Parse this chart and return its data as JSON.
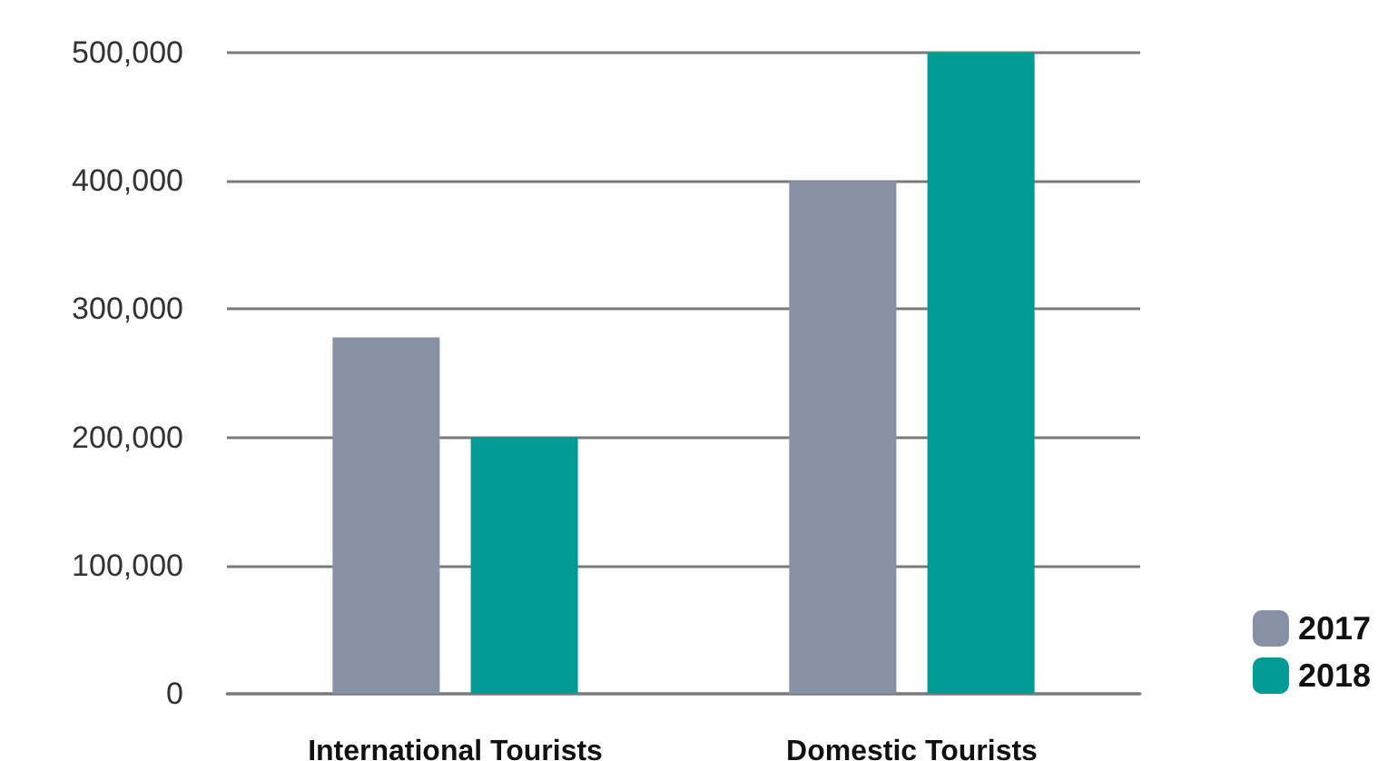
{
  "chart_data": {
    "type": "bar",
    "categories": [
      "International Tourists",
      "Domestic Tourists"
    ],
    "series": [
      {
        "name": "2017",
        "color": "#8790a4",
        "values": [
          278000,
          400000
        ]
      },
      {
        "name": "2018",
        "color": "#009b95",
        "values": [
          200000,
          500000
        ]
      }
    ],
    "ylim": [
      0,
      500000
    ],
    "yticks": [
      {
        "value": 0,
        "label": "0"
      },
      {
        "value": 100000,
        "label": "100,000"
      },
      {
        "value": 200000,
        "label": "200,000"
      },
      {
        "value": 300000,
        "label": "300,000"
      },
      {
        "value": 400000,
        "label": "400,000"
      },
      {
        "value": 500000,
        "label": "500,000"
      }
    ],
    "grid": "y",
    "legend": "bottom right"
  }
}
